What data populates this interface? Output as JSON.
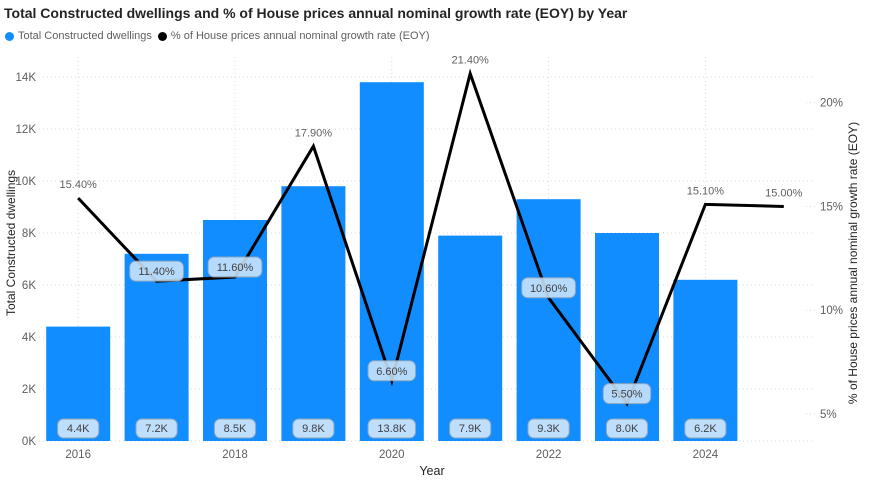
{
  "title": "Total Constructed dwellings and % of House prices annual nominal growth rate (EOY) by Year",
  "legend": {
    "items": [
      {
        "label": "Total Constructed dwellings",
        "color": "#118DFF"
      },
      {
        "label": "% of House prices annual nominal growth rate (EOY)",
        "color": "#000000"
      }
    ]
  },
  "colors": {
    "bar": "#118DFF",
    "line": "#000000",
    "grid": "#DADADA",
    "axis_text": "#605E5C",
    "title_text": "#252423",
    "badge_bg": "#CDE5FB",
    "badge_border": "#97A9B9",
    "badge_text": "#404040",
    "background": "#FFFFFF"
  },
  "chart_data": {
    "type": "combo-bar-line",
    "title": "Total Constructed dwellings and % of House prices annual nominal growth rate (EOY) by Year",
    "x_title": "Year",
    "categories": [
      "2016",
      "2017",
      "2018",
      "2019",
      "2020",
      "2021",
      "2022",
      "2023",
      "2024",
      "2025"
    ],
    "x_ticks": [
      "2016",
      "2018",
      "2020",
      "2022",
      "2024"
    ],
    "grid": true,
    "legend_position": "top-left",
    "series": [
      {
        "name": "Total Constructed dwellings",
        "type": "bar",
        "axis": "left",
        "values": [
          4400,
          7200,
          8500,
          9800,
          13800,
          7900,
          9300,
          8000,
          6200,
          null
        ],
        "labels": [
          "4.4K",
          "7.2K",
          "8.5K",
          "9.8K",
          "13.8K",
          "7.9K",
          "9.3K",
          "8.0K",
          "6.2K",
          null
        ]
      },
      {
        "name": "% of House prices annual nominal growth rate (EOY)",
        "type": "line",
        "axis": "right",
        "values": [
          15.4,
          11.4,
          11.6,
          17.9,
          6.6,
          21.4,
          10.6,
          5.5,
          15.1,
          15.0
        ],
        "labels": [
          "15.40%",
          "11.40%",
          "11.60%",
          "17.90%",
          "6.60%",
          "21.40%",
          "10.60%",
          "5.50%",
          "15.10%",
          "15.00%"
        ]
      }
    ],
    "left_axis": {
      "title": "Total Constructed dwellings",
      "ticks": [
        "0K",
        "2K",
        "4K",
        "6K",
        "8K",
        "10K",
        "12K",
        "14K"
      ],
      "tick_values": [
        0,
        2000,
        4000,
        6000,
        8000,
        10000,
        12000,
        14000
      ],
      "range": [
        0,
        14000
      ]
    },
    "right_axis": {
      "title": "% of House prices annual nominal growth rate (EOY)",
      "ticks": [
        "5%",
        "10%",
        "15%",
        "20%"
      ],
      "tick_values": [
        5,
        10,
        15,
        20
      ],
      "range": [
        3.7,
        22.2
      ]
    }
  }
}
